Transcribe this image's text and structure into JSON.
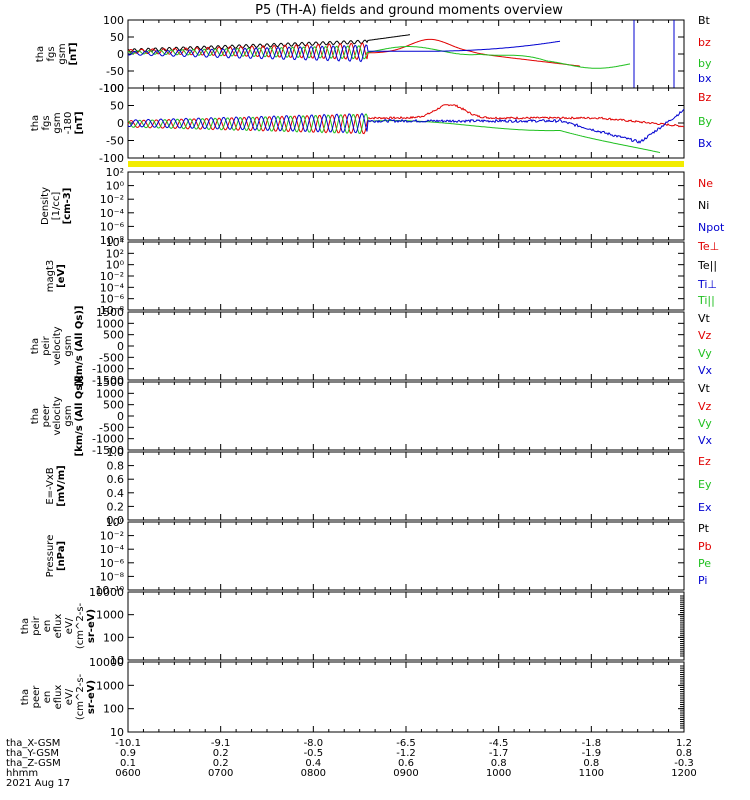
{
  "chart_data": {
    "type": "line",
    "title": "P5 (TH-A) fields and ground moments overview",
    "x_ticks": [
      "0600",
      "0700",
      "0800",
      "0900",
      "1000",
      "1100",
      "1200"
    ],
    "footer": {
      "rows": [
        {
          "label": "tha_X-GSM",
          "values": [
            "-10.1",
            "-9.1",
            "-8.0",
            "-6.5",
            "-4.5",
            "-1.8",
            "1.2"
          ]
        },
        {
          "label": "tha_Y-GSM",
          "values": [
            "0.9",
            "0.2",
            "-0.5",
            "-1.2",
            "-1.7",
            "-1.9",
            "0.8"
          ]
        },
        {
          "label": "tha_Z-GSM",
          "values": [
            "0.1",
            "0.2",
            "0.4",
            "0.6",
            "0.8",
            "0.8",
            "-0.3"
          ]
        },
        {
          "label": "hhmm",
          "values": [
            "0600",
            "0700",
            "0800",
            "0900",
            "1000",
            "1100",
            "1200"
          ]
        }
      ],
      "date": "2021 Aug 17"
    },
    "panels": [
      {
        "id": "fgs",
        "ylabel": [
          "tha",
          "fgs",
          "gsm",
          "[nT]"
        ],
        "yticks": [
          "100",
          "50",
          "0",
          "-50",
          "-100"
        ],
        "legend": [
          {
            "text": "Bt",
            "color": "#000000"
          },
          {
            "text": "bz",
            "color": "#e00000"
          },
          {
            "text": "by",
            "color": "#20c020"
          },
          {
            "text": "bx",
            "color": "#0000d0"
          }
        ]
      },
      {
        "id": "fgs_dsl",
        "ylabel": [
          "tha",
          "fgs",
          "gsm",
          "-180",
          "[nT]"
        ],
        "yticks": [
          "100",
          "50",
          "0",
          "-50",
          "-100"
        ],
        "legend": [
          {
            "text": "Bz",
            "color": "#e00000"
          },
          {
            "text": "By",
            "color": "#20c020"
          },
          {
            "text": "Bx",
            "color": "#0000d0"
          }
        ]
      },
      {
        "id": "density",
        "ylabel": [
          "Density",
          "[1/cc]",
          "[cm-3]"
        ],
        "yticks": [
          "10²",
          "10⁰",
          "10⁻²",
          "10⁻⁴",
          "10⁻⁶",
          "10⁻⁸"
        ],
        "legend": [
          {
            "text": "Ne",
            "color": "#e00000"
          },
          {
            "text": "Ni",
            "color": "#000000"
          },
          {
            "text": "Npot",
            "color": "#0000d0"
          }
        ]
      },
      {
        "id": "temp",
        "ylabel": [
          "magt3",
          "[eV]"
        ],
        "yticks": [
          "10⁴",
          "10²",
          "10⁰",
          "10⁻²",
          "10⁻⁴",
          "10⁻⁶",
          "10⁻⁸"
        ],
        "legend": [
          {
            "text": "Te⊥",
            "color": "#e00000"
          },
          {
            "text": "Te||",
            "color": "#000000"
          },
          {
            "text": "Ti⊥",
            "color": "#0000d0"
          },
          {
            "text": "Ti||",
            "color": "#20c020"
          }
        ]
      },
      {
        "id": "peir_vel",
        "ylabel": [
          "tha",
          "peir",
          "velocity",
          "gsm",
          "[km/s (All Qs)]"
        ],
        "yticks": [
          "1500",
          "1000",
          "500",
          "0",
          "-500",
          "-1000",
          "-1500"
        ],
        "legend": [
          {
            "text": "Vt",
            "color": "#000000"
          },
          {
            "text": "Vz",
            "color": "#e00000"
          },
          {
            "text": "Vy",
            "color": "#20c020"
          },
          {
            "text": "Vx",
            "color": "#0000d0"
          }
        ]
      },
      {
        "id": "peer_vel",
        "ylabel": [
          "tha",
          "peer",
          "velocity",
          "gsm",
          "[km/s (All Qs)]"
        ],
        "yticks": [
          "1500",
          "1000",
          "500",
          "0",
          "-500",
          "-1000",
          "-1500"
        ],
        "legend": [
          {
            "text": "Vt",
            "color": "#000000"
          },
          {
            "text": "Vz",
            "color": "#e00000"
          },
          {
            "text": "Vy",
            "color": "#20c020"
          },
          {
            "text": "Vx",
            "color": "#0000d0"
          }
        ]
      },
      {
        "id": "efield",
        "ylabel": [
          "E=-VxB",
          "[mV/m]"
        ],
        "yticks": [
          "1.0",
          "0.8",
          "0.6",
          "0.4",
          "0.2",
          "0.0"
        ],
        "legend": [
          {
            "text": "Ez",
            "color": "#e00000"
          },
          {
            "text": "Ey",
            "color": "#20c020"
          },
          {
            "text": "Ex",
            "color": "#0000d0"
          }
        ]
      },
      {
        "id": "pressure",
        "ylabel": [
          "Pressure",
          "[nPa]"
        ],
        "yticks": [
          "10⁰",
          "10⁻²",
          "10⁻⁴",
          "10⁻⁶",
          "10⁻⁸",
          "10⁻¹⁰"
        ],
        "legend": [
          {
            "text": "Pt",
            "color": "#000000"
          },
          {
            "text": "Pb",
            "color": "#e00000"
          },
          {
            "text": "Pe",
            "color": "#20c020"
          },
          {
            "text": "Pi",
            "color": "#0000d0"
          }
        ]
      },
      {
        "id": "peir_flux",
        "ylabel": [
          "tha",
          "peir",
          "en",
          "eflux",
          "eV/",
          "(cm^2-s-",
          "sr-eV)"
        ],
        "yticks": [
          "10000",
          "1000",
          "100",
          "10"
        ],
        "legend": []
      },
      {
        "id": "peer_flux",
        "ylabel": [
          "tha",
          "peer",
          "en",
          "eflux",
          "eV/",
          "(cm^2-s-",
          "sr-eV)"
        ],
        "yticks": [
          "10000",
          "1000",
          "100",
          "10"
        ],
        "legend": []
      }
    ]
  }
}
